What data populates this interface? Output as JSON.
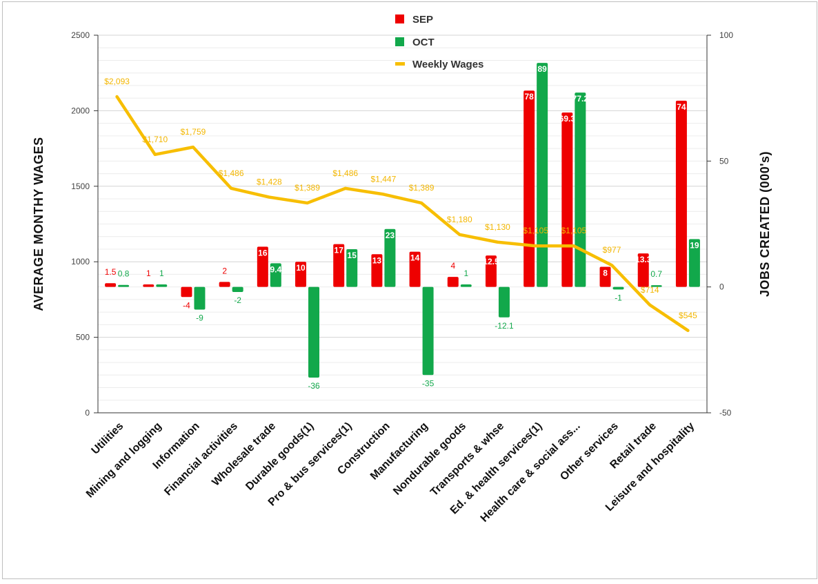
{
  "chart_data": {
    "type": "bar",
    "categories": [
      "Utilities",
      "Mining and logging",
      "Information",
      "Financial activities",
      "Wholesale trade",
      "Durable goods(1)",
      "Pro & bus services(1)",
      "Construction",
      "Manufacturing",
      "Nondurable goods",
      "Transports & whse",
      "Ed. & health services(1)",
      "Health care & social ass...",
      "Other services",
      "Retail trade",
      "Leisure and hospitality"
    ],
    "series": [
      {
        "name": "SEP",
        "type": "bar",
        "axis": "right",
        "color": "#ee0000",
        "values": [
          1.5,
          1,
          -4,
          2,
          16,
          10,
          17,
          13,
          14,
          4,
          12.5,
          78,
          69.3,
          8,
          13.3,
          74
        ],
        "labels": [
          "1.5",
          "1",
          "-4",
          "2",
          "16",
          "10",
          "17",
          "13",
          "14",
          "4",
          "12.5",
          "78",
          "69.3",
          "8",
          "13.3",
          "74"
        ]
      },
      {
        "name": "OCT",
        "type": "bar",
        "axis": "right",
        "color": "#12a84b",
        "values": [
          0.8,
          1,
          -9,
          -2,
          9.4,
          -36,
          15,
          23,
          -35,
          1,
          -12.1,
          89,
          77.2,
          -1,
          0.7,
          19
        ],
        "labels": [
          "0.8",
          "1",
          "-9",
          "-2",
          "9.4",
          "-36",
          "15",
          "23",
          "-35",
          "1",
          "-12.1",
          "89",
          "77.2",
          "-1",
          "0.7",
          "19"
        ]
      },
      {
        "name": "Weekly Wages",
        "type": "line",
        "axis": "left",
        "color": "#f7be00",
        "values": [
          2093,
          1710,
          1759,
          1486,
          1428,
          1389,
          1486,
          1447,
          1389,
          1180,
          1130,
          1105,
          1105,
          977,
          714,
          545
        ],
        "labels": [
          "$2,093",
          "$1,710",
          "$1,759",
          "$1,486",
          "$1,428",
          "$1,389",
          "$1,486",
          "$1,447",
          "$1,389",
          "$1,180",
          "$1,130",
          "$1,105",
          "$1,105",
          "$977",
          "$714",
          "$545"
        ]
      }
    ],
    "y_left": {
      "label": "AVERAGE MONTHY WAGES",
      "range": [
        0,
        2500
      ],
      "ticks": [
        "0",
        "500",
        "1000",
        "1500",
        "2000",
        "2500"
      ]
    },
    "y_right": {
      "label": "JOBS CREATED (000's)",
      "range": [
        -50,
        100
      ],
      "ticks": [
        "-50",
        "0",
        "50",
        "100"
      ]
    },
    "legend": {
      "position": "top-center",
      "items": [
        "SEP",
        "OCT",
        "Weekly Wages"
      ]
    },
    "grid": true
  }
}
